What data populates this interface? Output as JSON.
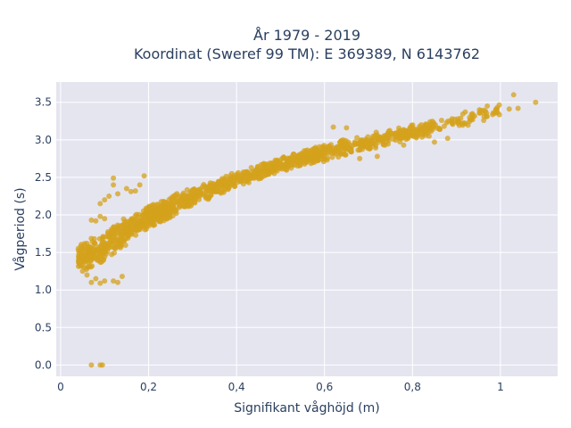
{
  "chart_data": {
    "type": "scatter",
    "title_lines": [
      "År 1979 - 2019",
      "Koordinat (Sweref 99 TM): E 369389, N 6143762"
    ],
    "xlabel": "Signifikant våghöjd (m)",
    "ylabel": "Vågperiod (s)",
    "xlim": [
      -0.01,
      1.13
    ],
    "ylim": [
      -0.15,
      3.77
    ],
    "x_ticks": [
      0,
      0.2,
      0.4,
      0.6,
      0.8,
      1.0
    ],
    "x_tick_labels": [
      "0",
      "0,2",
      "0,4",
      "0,6",
      "0,8",
      "1"
    ],
    "y_ticks": [
      0,
      0.5,
      1.0,
      1.5,
      2.0,
      2.5,
      3.0,
      3.5
    ],
    "y_tick_labels": [
      "0.0",
      "0.5",
      "1.0",
      "1.5",
      "2.0",
      "2.5",
      "3.0",
      "3.5"
    ],
    "grid": true,
    "marker_color": "#d4a21c",
    "background_color": "#e5e5f0",
    "band_points": [
      [
        0.04,
        1.42
      ],
      [
        0.06,
        1.45
      ],
      [
        0.08,
        1.5
      ],
      [
        0.1,
        1.58
      ],
      [
        0.12,
        1.66
      ],
      [
        0.14,
        1.74
      ],
      [
        0.16,
        1.82
      ],
      [
        0.18,
        1.89
      ],
      [
        0.2,
        1.96
      ],
      [
        0.25,
        2.11
      ],
      [
        0.3,
        2.24
      ],
      [
        0.35,
        2.36
      ],
      [
        0.4,
        2.47
      ],
      [
        0.45,
        2.57
      ],
      [
        0.5,
        2.66
      ],
      [
        0.55,
        2.75
      ],
      [
        0.6,
        2.83
      ],
      [
        0.65,
        2.91
      ],
      [
        0.7,
        2.97
      ],
      [
        0.75,
        3.04
      ],
      [
        0.8,
        3.1
      ],
      [
        0.85,
        3.17
      ],
      [
        0.9,
        3.24
      ],
      [
        0.95,
        3.31
      ],
      [
        1.0,
        3.38
      ]
    ],
    "outlier_points": [
      [
        0.07,
        0.0
      ],
      [
        0.09,
        0.0
      ],
      [
        0.095,
        0.0
      ],
      [
        1.03,
        3.6
      ],
      [
        1.08,
        3.5
      ],
      [
        1.04,
        3.42
      ],
      [
        1.02,
        3.41
      ],
      [
        0.99,
        3.4
      ],
      [
        0.97,
        3.45
      ],
      [
        0.96,
        3.36
      ],
      [
        0.92,
        3.37
      ],
      [
        0.19,
        2.52
      ],
      [
        0.18,
        2.4
      ],
      [
        0.12,
        2.4
      ],
      [
        0.12,
        2.49
      ],
      [
        0.15,
        2.35
      ],
      [
        0.17,
        2.32
      ],
      [
        0.16,
        2.31
      ],
      [
        0.13,
        2.28
      ],
      [
        0.11,
        2.25
      ],
      [
        0.1,
        2.2
      ],
      [
        0.09,
        2.15
      ],
      [
        0.07,
        1.93
      ],
      [
        0.08,
        1.92
      ],
      [
        0.09,
        1.98
      ],
      [
        0.1,
        1.95
      ],
      [
        0.07,
        1.1
      ],
      [
        0.09,
        1.09
      ],
      [
        0.05,
        1.25
      ],
      [
        0.06,
        1.2
      ],
      [
        0.08,
        1.15
      ],
      [
        0.1,
        1.12
      ],
      [
        0.12,
        1.12
      ],
      [
        0.13,
        1.1
      ],
      [
        0.14,
        1.18
      ],
      [
        0.06,
        1.62
      ],
      [
        0.65,
        3.16
      ],
      [
        0.62,
        3.17
      ],
      [
        0.72,
        2.78
      ],
      [
        0.68,
        2.75
      ],
      [
        0.78,
        2.93
      ],
      [
        0.85,
        2.97
      ],
      [
        0.88,
        3.02
      ],
      [
        0.82,
        3.2
      ],
      [
        0.93,
        3.3
      ],
      [
        0.89,
        3.28
      ]
    ]
  }
}
